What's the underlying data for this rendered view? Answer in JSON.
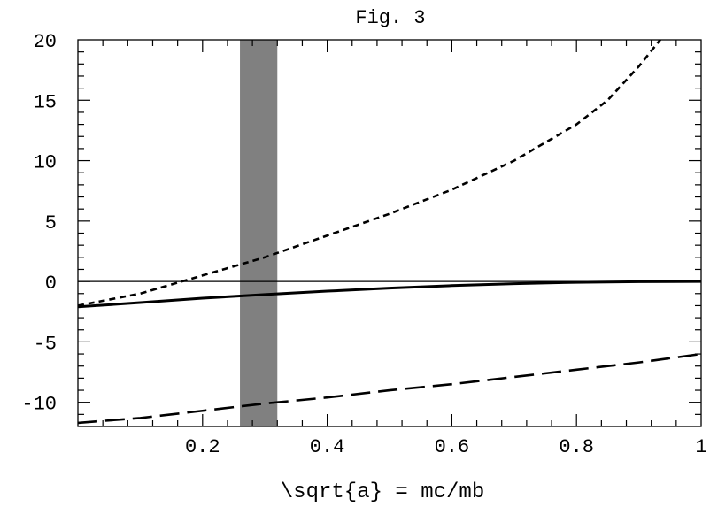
{
  "chart_data": {
    "type": "line",
    "title": "Fig. 3",
    "xlabel": "\\sqrt{a} = mc/mb",
    "ylabel": "",
    "xlim": [
      0,
      1
    ],
    "ylim": [
      -12,
      20
    ],
    "x_ticks": [
      {
        "value": 0.2,
        "label": "0.2"
      },
      {
        "value": 0.4,
        "label": "0.4"
      },
      {
        "value": 0.6,
        "label": "0.6"
      },
      {
        "value": 0.8,
        "label": "0.8"
      },
      {
        "value": 1.0,
        "label": "1"
      }
    ],
    "y_ticks": [
      {
        "value": 20,
        "label": "20"
      },
      {
        "value": 15,
        "label": "15"
      },
      {
        "value": 10,
        "label": "10"
      },
      {
        "value": 5,
        "label": "5"
      },
      {
        "value": 0,
        "label": "0"
      },
      {
        "value": -5,
        "label": "-5"
      },
      {
        "value": -10,
        "label": "-10"
      }
    ],
    "grid": false,
    "legend": "none",
    "shaded_band": {
      "x_start": 0.26,
      "x_end": 0.32,
      "color": "#808080"
    },
    "reference_line": {
      "y": 0
    },
    "series": [
      {
        "style": "solid-thick",
        "x": [
          0.0,
          0.1,
          0.2,
          0.3,
          0.4,
          0.5,
          0.6,
          0.7,
          0.8,
          0.9,
          1.0
        ],
        "y": [
          -2.1,
          -1.75,
          -1.38,
          -1.08,
          -0.8,
          -0.55,
          -0.34,
          -0.18,
          -0.07,
          -0.02,
          0.0
        ]
      },
      {
        "style": "short-dash",
        "x": [
          0.0,
          0.1,
          0.2,
          0.3,
          0.4,
          0.5,
          0.6,
          0.7,
          0.8,
          0.85,
          0.9,
          0.95
        ],
        "y": [
          -2.0,
          -1.0,
          0.5,
          2.0,
          3.8,
          5.6,
          7.6,
          10.0,
          13.0,
          15.0,
          17.8,
          21.0
        ]
      },
      {
        "style": "long-dash",
        "x": [
          0.0,
          0.1,
          0.2,
          0.3,
          0.4,
          0.5,
          0.6,
          0.7,
          0.8,
          0.9,
          1.0
        ],
        "y": [
          -11.7,
          -11.3,
          -10.7,
          -10.1,
          -9.6,
          -9.0,
          -8.5,
          -7.9,
          -7.3,
          -6.7,
          -6.0
        ]
      }
    ]
  }
}
